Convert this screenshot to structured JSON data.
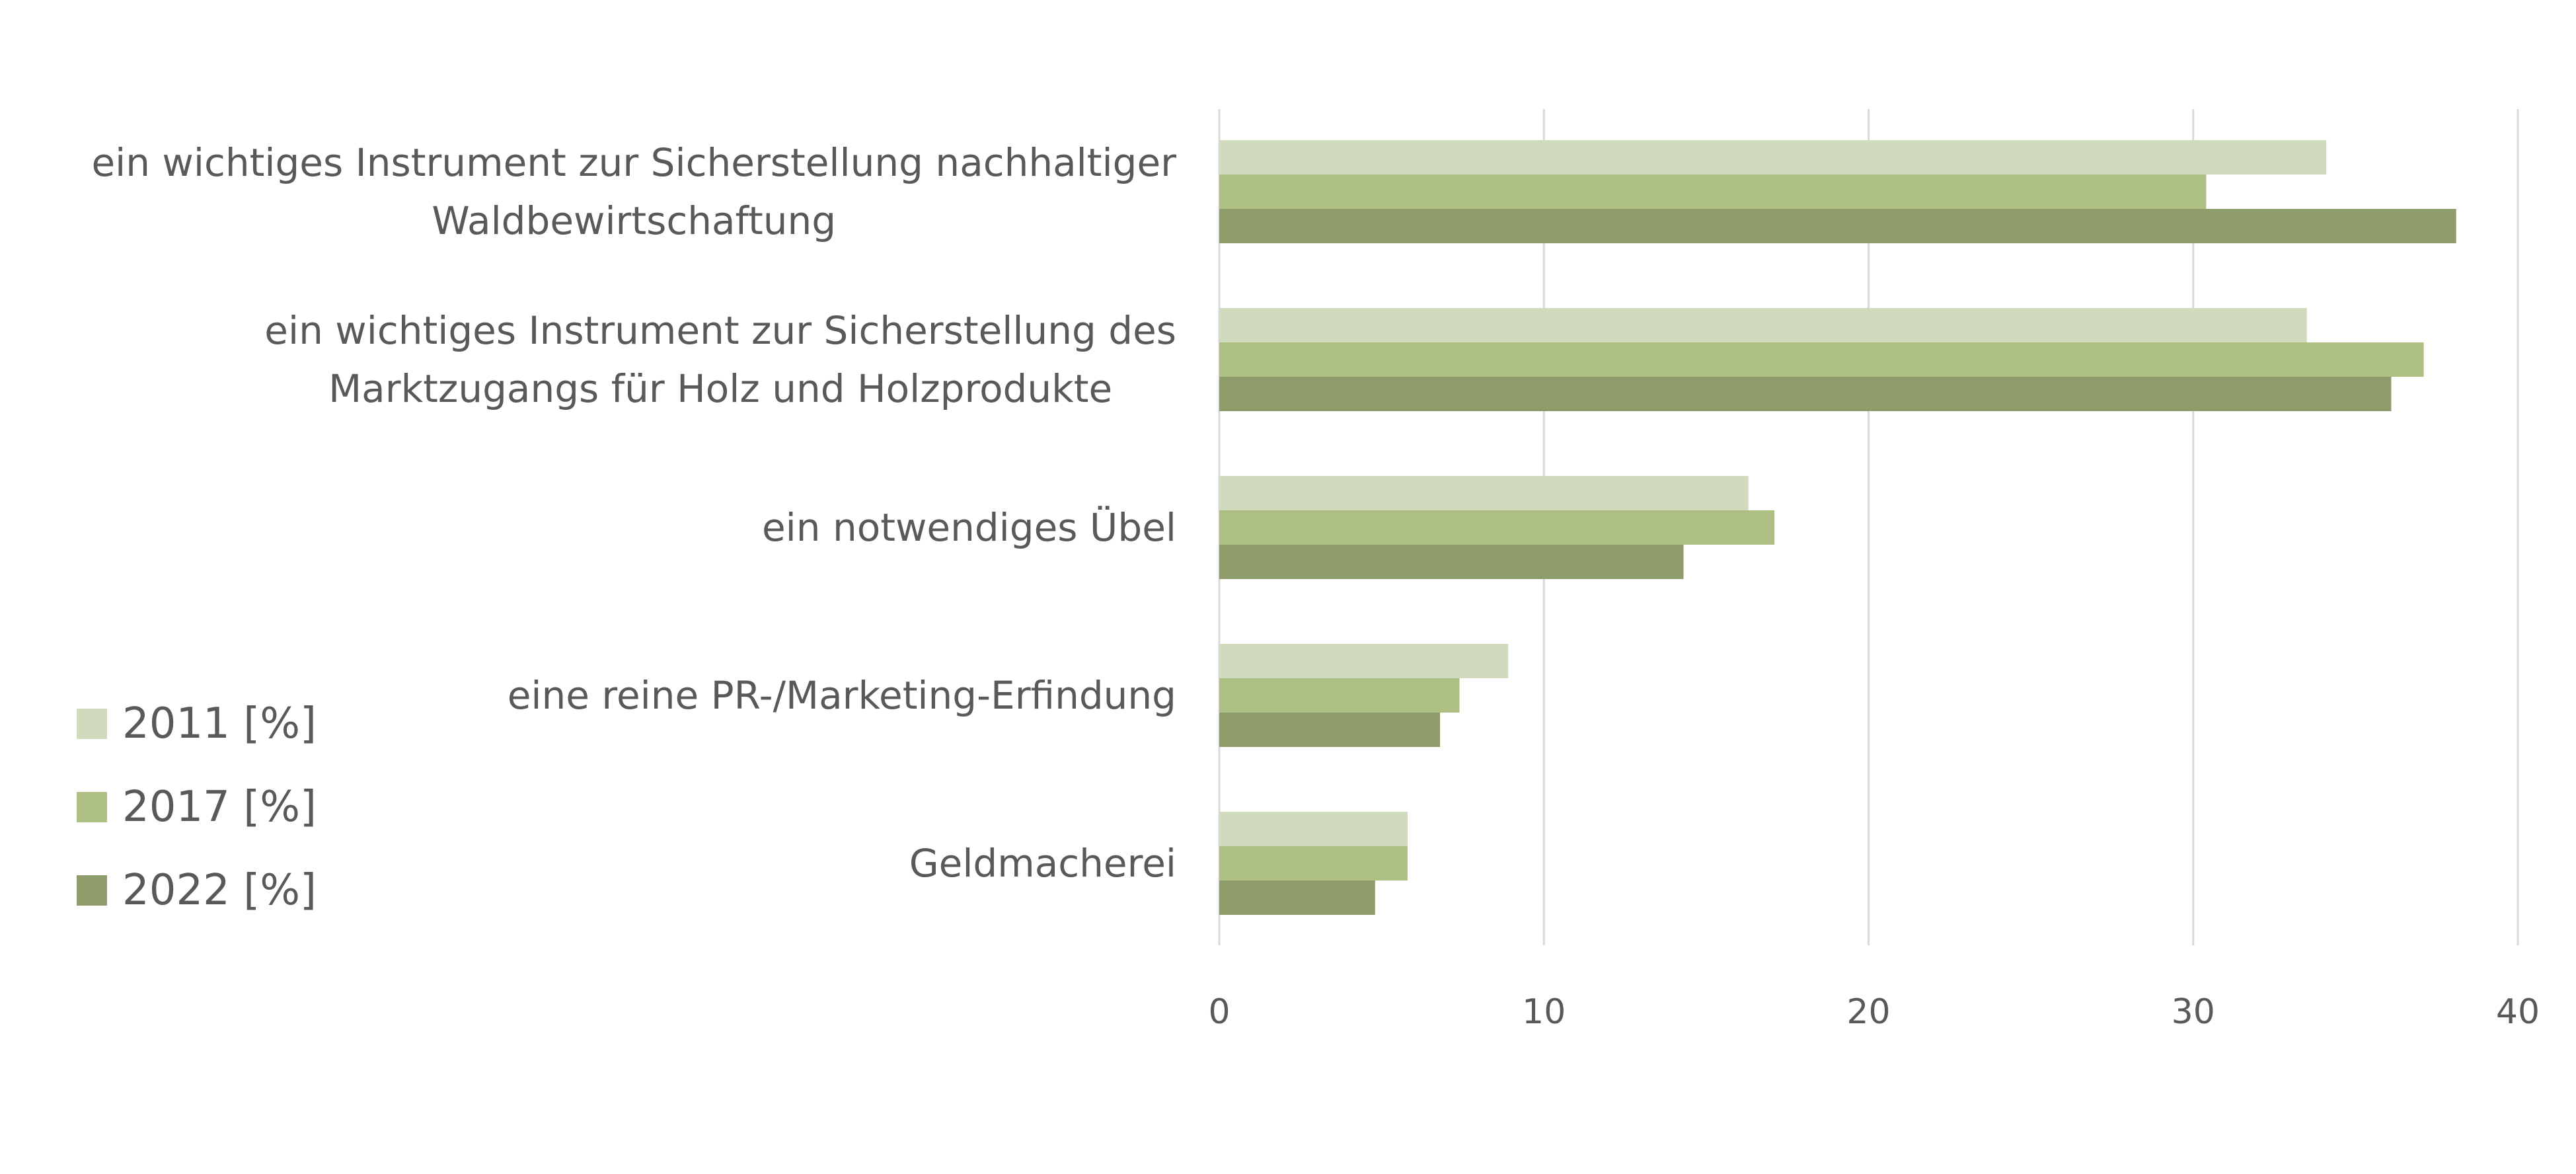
{
  "chart_data": {
    "type": "bar",
    "orientation": "horizontal",
    "title": "",
    "xlabel": "",
    "ylabel": "",
    "xlim": [
      0,
      40
    ],
    "x_ticks": [
      "0",
      "10",
      "20",
      "30",
      "40"
    ],
    "grid": true,
    "legend_position": "left",
    "categories": [
      [
        "ein wichtiges Instrument zur Sicherstellung nachhaltiger",
        "Waldbewirtschaftung"
      ],
      [
        "ein wichtiges Instrument zur Sicherstellung des",
        "Marktzugangs für Holz und Holzprodukte"
      ],
      [
        "ein notwendiges Übel"
      ],
      [
        "eine reine PR-/Marketing-Erfindung"
      ],
      [
        "Geldmacherei"
      ]
    ],
    "series": [
      {
        "name": "2011 [%]",
        "color": "#d0dabd",
        "values": [
          34.1,
          33.5,
          16.3,
          8.9,
          5.8
        ]
      },
      {
        "name": "2017 [%]",
        "color": "#adbf83",
        "values": [
          30.4,
          37.1,
          17.1,
          7.4,
          5.8
        ]
      },
      {
        "name": "2022 [%]",
        "color": "#8e9c6b",
        "values": [
          38.1,
          36.1,
          14.3,
          6.8,
          4.8
        ]
      }
    ]
  }
}
